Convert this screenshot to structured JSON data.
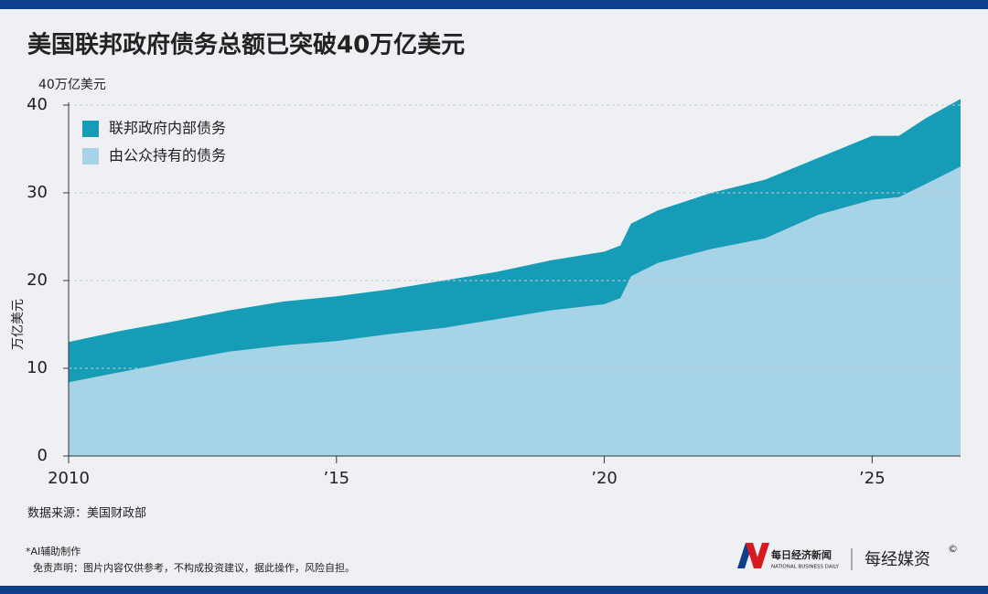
{
  "chart_data": {
    "type": "stacked_area",
    "title": "美国联邦政府债务总额已突破40万亿美元",
    "y_unit_label": "40万亿美元",
    "ylabel": "万亿美元",
    "x": [
      2010,
      2011,
      2012,
      2013,
      2014,
      2015,
      2016,
      2017,
      2018,
      2019,
      2020,
      2020.3,
      2020.5,
      2021,
      2022,
      2023,
      2024,
      2025,
      2025.5,
      2026,
      2026.65
    ],
    "series": [
      {
        "name": "由公众持有的债务",
        "color": "#a7d3e7",
        "values": [
          8.4,
          9.6,
          10.8,
          11.9,
          12.6,
          13.1,
          13.9,
          14.6,
          15.6,
          16.6,
          17.3,
          18.0,
          20.5,
          22.0,
          23.6,
          24.8,
          27.5,
          29.2,
          29.5,
          31.0,
          33.0
        ]
      },
      {
        "name": "联邦政府内部债务",
        "color": "#169cb7",
        "values": [
          4.6,
          4.7,
          4.6,
          4.7,
          5.0,
          5.1,
          5.1,
          5.4,
          5.4,
          5.7,
          6.0,
          6.0,
          6.0,
          6.0,
          6.4,
          6.7,
          6.5,
          7.3,
          7.0,
          7.5,
          7.7
        ]
      }
    ],
    "xlim": [
      2010,
      2026.65
    ],
    "xticks": [
      2010,
      {
        "value": 2015,
        "label": "’15"
      },
      {
        "value": 2020,
        "label": "’20"
      },
      {
        "value": 2025,
        "label": "’25"
      }
    ],
    "ylim": [
      0,
      40
    ],
    "yticks": [
      0,
      10,
      20,
      30,
      40
    ],
    "grid": true,
    "legend": "top-left",
    "source": "数据来源：美国财政部"
  },
  "footer": {
    "ai_note": "*AI辅助制作",
    "disclaimer": "免责声明：图片内容仅供参考，不构成投资建议，据此操作，风险自担。",
    "logo_cn": "每日经济新闻",
    "logo_en": "NATIONAL BUSINESS DAILY",
    "brand": "每经媒资",
    "copyright": "©"
  }
}
